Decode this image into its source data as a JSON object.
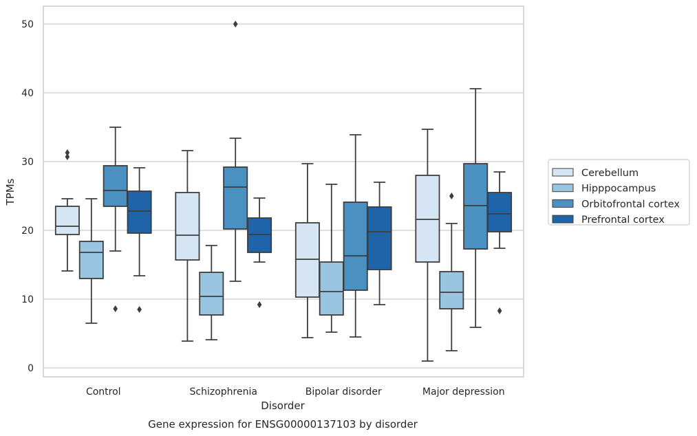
{
  "chart_data": {
    "type": "box",
    "title": "",
    "caption": "Gene expression for ENSG00000137103 by disorder",
    "xlabel": "Disorder",
    "ylabel": "TPMs",
    "ylim": [
      -1.3,
      52.6
    ],
    "yticks": [
      0,
      10,
      20,
      30,
      40,
      50
    ],
    "grid": "horizontal",
    "legend_position": "right",
    "categories": [
      "Control",
      "Schizophrenia",
      "Bipolar disorder",
      "Major depression"
    ],
    "series": [
      {
        "name": "Cerebellum",
        "color": "#d6e5f4",
        "boxes": [
          {
            "whisker_low": 14.1,
            "q1": 19.4,
            "median": 20.6,
            "q3": 23.5,
            "whisker_high": 24.6,
            "outliers": [
              30.7,
              31.3
            ]
          },
          {
            "whisker_low": 3.9,
            "q1": 15.7,
            "median": 19.3,
            "q3": 25.5,
            "whisker_high": 31.6,
            "outliers": []
          },
          {
            "whisker_low": 4.4,
            "q1": 10.3,
            "median": 15.8,
            "q3": 21.1,
            "whisker_high": 29.7,
            "outliers": []
          },
          {
            "whisker_low": 1.0,
            "q1": 15.4,
            "median": 21.6,
            "q3": 28.0,
            "whisker_high": 34.7,
            "outliers": []
          }
        ]
      },
      {
        "name": "Hipppocampus",
        "color": "#9ac5e0",
        "boxes": [
          {
            "whisker_low": 6.5,
            "q1": 13.0,
            "median": 16.8,
            "q3": 18.4,
            "whisker_high": 24.6,
            "outliers": []
          },
          {
            "whisker_low": 4.1,
            "q1": 7.7,
            "median": 10.4,
            "q3": 13.9,
            "whisker_high": 17.8,
            "outliers": []
          },
          {
            "whisker_low": 5.2,
            "q1": 7.7,
            "median": 11.1,
            "q3": 15.4,
            "whisker_high": 26.7,
            "outliers": []
          },
          {
            "whisker_low": 2.5,
            "q1": 8.6,
            "median": 11.0,
            "q3": 14.0,
            "whisker_high": 21.0,
            "outliers": [
              25.0
            ]
          }
        ]
      },
      {
        "name": "Orbitofrontal cortex",
        "color": "#4a91c2",
        "boxes": [
          {
            "whisker_low": 17.0,
            "q1": 23.5,
            "median": 25.8,
            "q3": 29.4,
            "whisker_high": 35.0,
            "outliers": [
              8.6
            ]
          },
          {
            "whisker_low": 12.6,
            "q1": 20.2,
            "median": 26.3,
            "q3": 29.2,
            "whisker_high": 33.4,
            "outliers": [
              50.0
            ]
          },
          {
            "whisker_low": 4.5,
            "q1": 11.3,
            "median": 16.3,
            "q3": 24.1,
            "whisker_high": 33.9,
            "outliers": []
          },
          {
            "whisker_low": 5.9,
            "q1": 17.3,
            "median": 23.6,
            "q3": 29.7,
            "whisker_high": 40.6,
            "outliers": []
          }
        ]
      },
      {
        "name": "Prefrontal cortex",
        "color": "#1f63a8",
        "boxes": [
          {
            "whisker_low": 13.4,
            "q1": 19.6,
            "median": 22.8,
            "q3": 25.7,
            "whisker_high": 29.1,
            "outliers": [
              8.5
            ]
          },
          {
            "whisker_low": 15.4,
            "q1": 16.8,
            "median": 19.4,
            "q3": 21.8,
            "whisker_high": 24.7,
            "outliers": [
              9.2
            ]
          },
          {
            "whisker_low": 9.2,
            "q1": 14.3,
            "median": 19.8,
            "q3": 23.4,
            "whisker_high": 27.0,
            "outliers": []
          },
          {
            "whisker_low": 17.4,
            "q1": 19.8,
            "median": 22.4,
            "q3": 25.5,
            "whisker_high": 28.5,
            "outliers": [
              8.3
            ]
          }
        ]
      }
    ]
  }
}
